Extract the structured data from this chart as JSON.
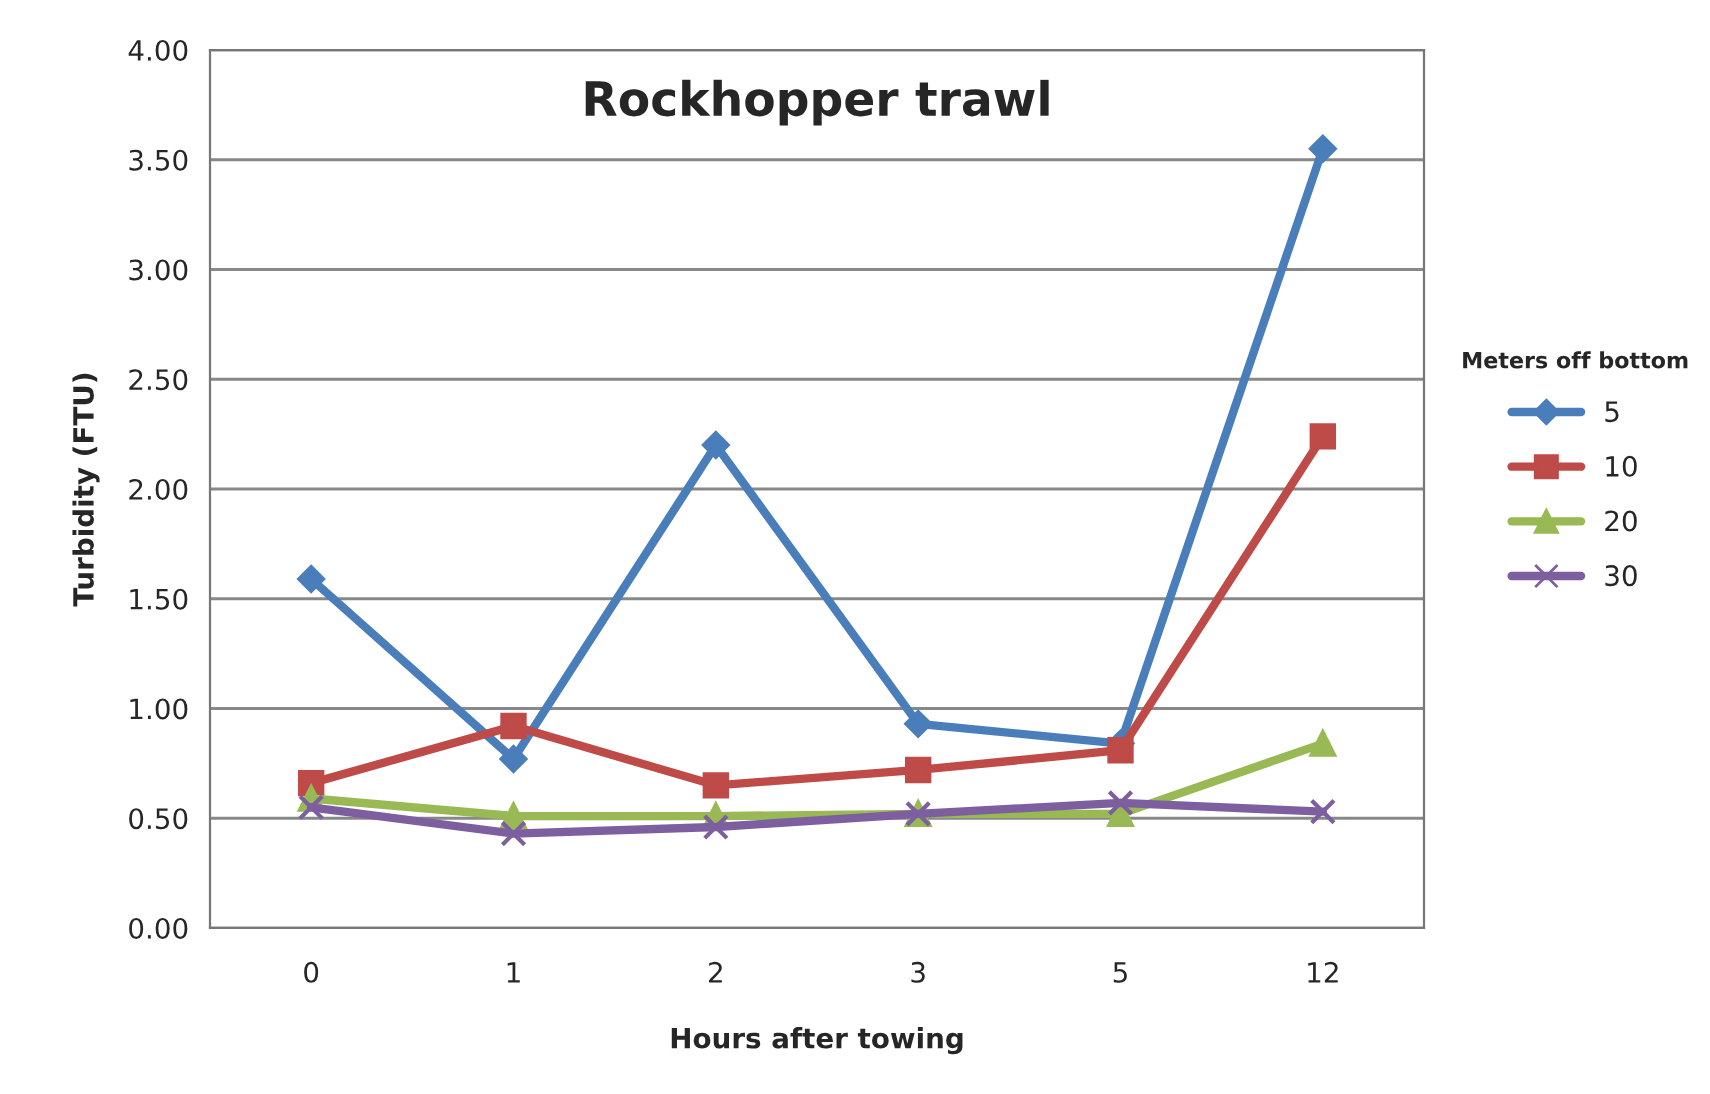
{
  "chart_data": {
    "type": "line",
    "title": "Rockhopper trawl",
    "xlabel": "Hours after towing",
    "ylabel": "Turbidity (FTU)",
    "legend_title": "Meters off bottom",
    "categories": [
      "0",
      "1",
      "2",
      "3",
      "5",
      "12"
    ],
    "series": [
      {
        "name": "5",
        "color": "#4a7ebb",
        "marker": "diamond",
        "values": [
          1.59,
          0.77,
          2.2,
          0.93,
          0.84,
          3.55
        ]
      },
      {
        "name": "10",
        "color": "#be4b48",
        "marker": "square",
        "values": [
          0.66,
          0.92,
          0.65,
          0.72,
          0.81,
          2.24
        ]
      },
      {
        "name": "20",
        "color": "#98b954",
        "marker": "triangle",
        "values": [
          0.59,
          0.51,
          0.51,
          0.52,
          0.52,
          0.84
        ]
      },
      {
        "name": "30",
        "color": "#7d5fa0",
        "marker": "cross",
        "values": [
          0.55,
          0.43,
          0.46,
          0.52,
          0.57,
          0.53
        ]
      }
    ],
    "ylim": [
      0,
      4
    ],
    "yticks": [
      {
        "value": 0,
        "label": "0.00"
      },
      {
        "value": 0.5,
        "label": "0.50"
      },
      {
        "value": 1,
        "label": "1.00"
      },
      {
        "value": 1.5,
        "label": "1.50"
      },
      {
        "value": 2,
        "label": "2.00"
      },
      {
        "value": 2.5,
        "label": "2.50"
      },
      {
        "value": 3,
        "label": "3.00"
      },
      {
        "value": 3.5,
        "label": "3.50"
      },
      {
        "value": 4,
        "label": "4.00"
      }
    ],
    "grid": "y",
    "legend": "right"
  }
}
